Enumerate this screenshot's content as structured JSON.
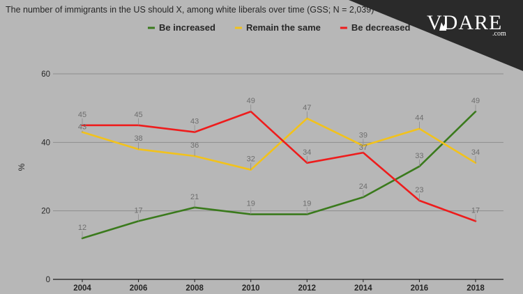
{
  "chart_data": {
    "type": "line",
    "title": "The number of immigrants in the US should X, among white liberals over time (GSS; N = 2,039)",
    "ylabel": "%",
    "xlabel": "",
    "ylim": [
      0,
      60
    ],
    "yticks": [
      0,
      20,
      40,
      60
    ],
    "categories": [
      "2004",
      "2006",
      "2008",
      "2010",
      "2012",
      "2014",
      "2016",
      "2018"
    ],
    "legend_position": "top-center",
    "series": [
      {
        "name": "Be increased",
        "color": "#3a7a1c",
        "values": [
          12,
          17,
          21,
          19,
          19,
          24,
          33,
          49
        ]
      },
      {
        "name": "Remain the same",
        "color": "#f2c21b",
        "values": [
          43,
          38,
          36,
          32,
          47,
          39,
          44,
          34
        ]
      },
      {
        "name": "Be decreased",
        "color": "#ee1c1c",
        "values": [
          45,
          45,
          43,
          49,
          34,
          37,
          23,
          17
        ]
      }
    ]
  },
  "brand": {
    "logo_text": "VDARE",
    "domain_text": ".com",
    "background_color": "#2a2a2a"
  }
}
